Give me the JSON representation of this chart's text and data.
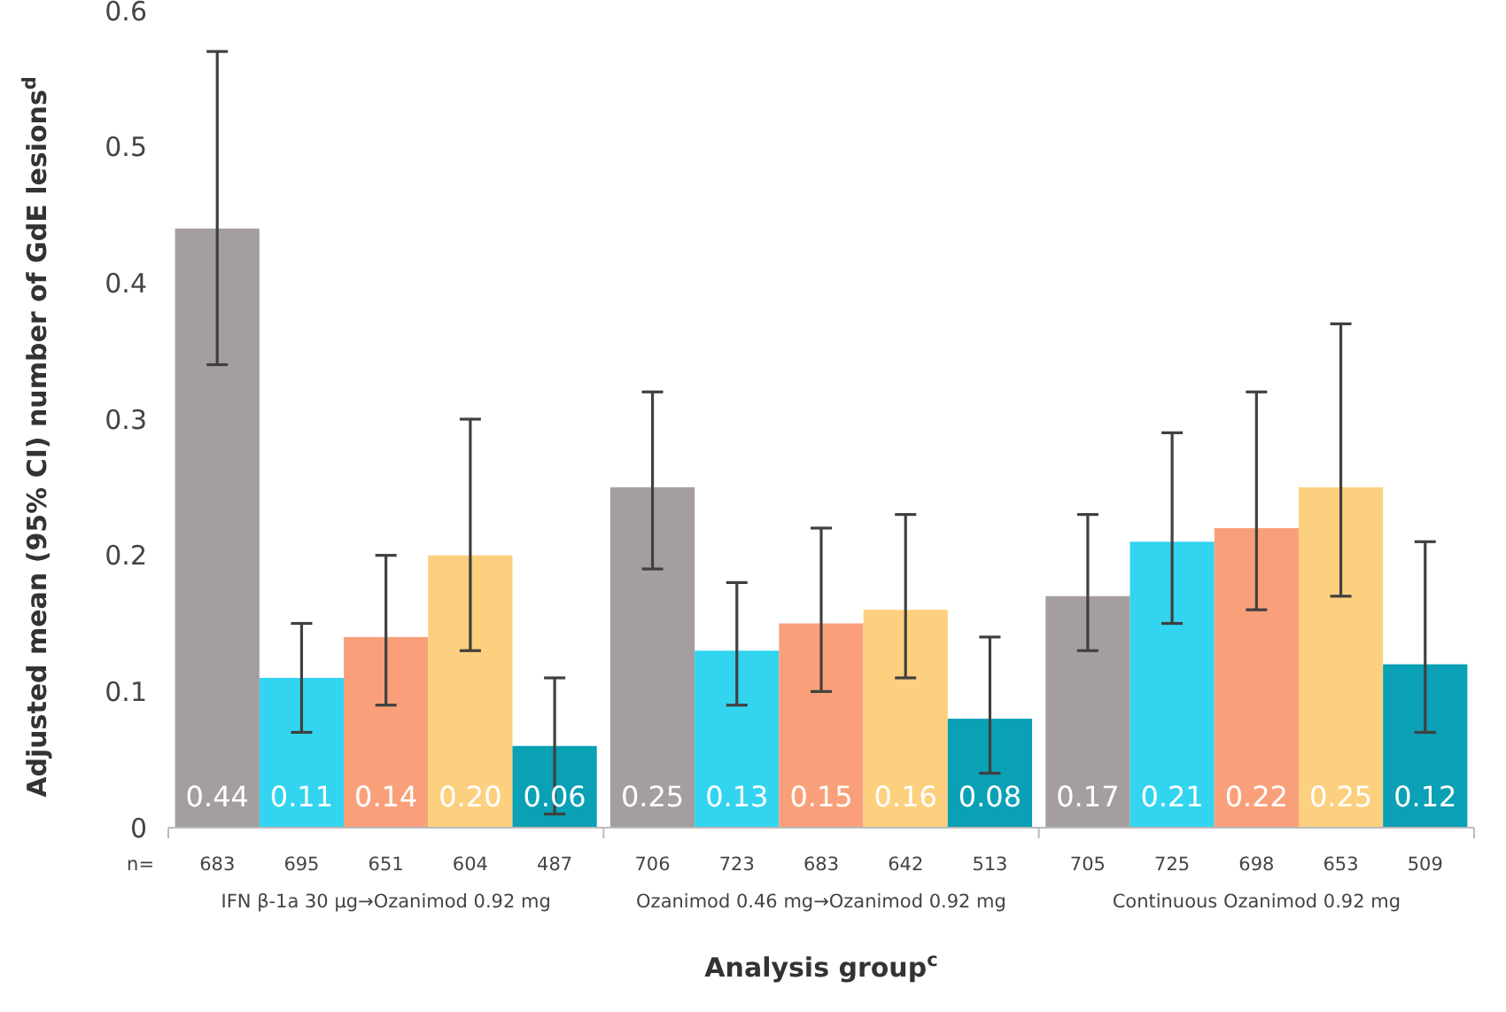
{
  "chart_data": {
    "type": "bar",
    "xlabel": "Analysis group$^{c}$",
    "ylabel": "Adjusted mean (95% CI) number of GdE lesions$^{d}$",
    "categories": [
      "IFN β-1a 30 µg→Ozanimod 0.92 mg",
      "Ozanimod 0.46 mg→Ozanimod 0.92 mg",
      "Continuous Ozanimod 0.92 mg"
    ],
    "series": [
      {
        "color": "#a59e9e",
        "values": [
          0.44,
          0.25,
          0.17
        ],
        "value_labels": [
          "0.44",
          "0.25",
          "0.17"
        ],
        "errors": [
          [
            0.34,
            0.57
          ],
          [
            0.19,
            0.32
          ],
          [
            0.13,
            0.23
          ]
        ]
      },
      {
        "color": "#33d4ef",
        "values": [
          0.11,
          0.13,
          0.21
        ],
        "value_labels": [
          "0.11",
          "0.13",
          "0.21"
        ],
        "errors": [
          [
            0.07,
            0.15
          ],
          [
            0.09,
            0.18
          ],
          [
            0.15,
            0.29
          ]
        ]
      },
      {
        "color": "#f9a07a",
        "values": [
          0.14,
          0.15,
          0.22
        ],
        "value_labels": [
          "0.14",
          "0.15",
          "0.22"
        ],
        "errors": [
          [
            0.09,
            0.2
          ],
          [
            0.1,
            0.22
          ],
          [
            0.16,
            0.32
          ]
        ]
      },
      {
        "color": "#fdd07f",
        "values": [
          0.2,
          0.16,
          0.25
        ],
        "value_labels": [
          "0.20",
          "0.16",
          "0.25"
        ],
        "errors": [
          [
            0.13,
            0.3
          ],
          [
            0.11,
            0.23
          ],
          [
            0.17,
            0.37
          ]
        ]
      },
      {
        "color": "#0aa0b5",
        "values": [
          0.06,
          0.08,
          0.12
        ],
        "value_labels": [
          "0.06",
          "0.08",
          "0.12"
        ],
        "errors": [
          [
            0.01,
            0.11
          ],
          [
            0.04,
            0.14
          ],
          [
            0.07,
            0.21
          ]
        ]
      }
    ],
    "annotations": [
      "n=",
      "683",
      "695",
      "651",
      "604",
      "487",
      "706",
      "723",
      "683",
      "642",
      "513",
      "705",
      "725",
      "698",
      "653",
      "509"
    ],
    "ylim": [
      0,
      0.6
    ],
    "yticks": [
      0,
      0.1,
      0.2,
      0.3,
      0.4,
      0.5,
      0.6
    ],
    "grid": false
  }
}
